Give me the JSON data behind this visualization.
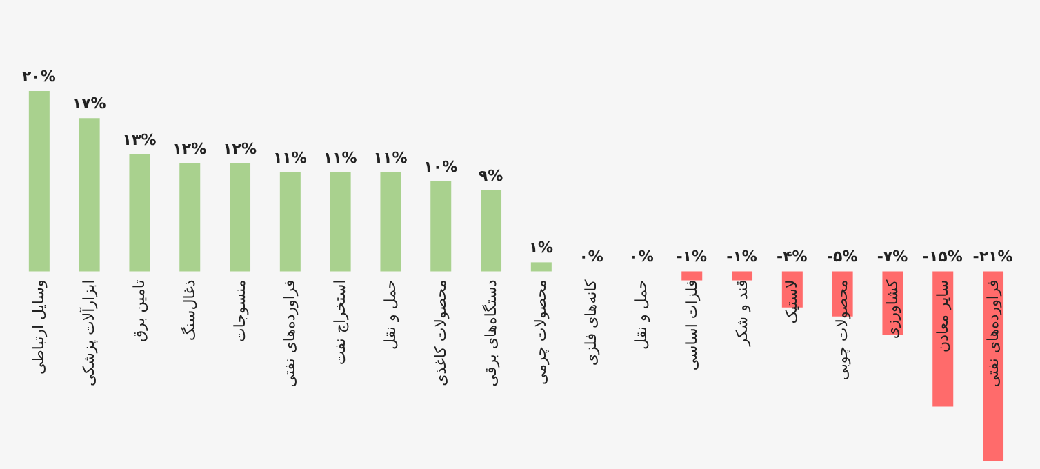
{
  "chart_data": {
    "type": "bar",
    "categories": [
      "وسایل ارتباطی",
      "ابزارآلات پزشکی",
      "تامین برق",
      "ذغال‌سنگ",
      "منسوجات",
      "فراورده‌های نفتی",
      "استخراج نفت",
      "حمل و نقل",
      "محصولات کاغذی",
      "دستگاه‌های برقی",
      "محصولات چرمی",
      "کانه‌های فلزی",
      "حمل و نقل",
      "فلزات اساسی",
      "قند و شکر",
      "لاستیک",
      "محصولات چوبی",
      "کشاورزی",
      "سایر معادن",
      "فراورده‌های نفتی"
    ],
    "values": [
      20,
      17,
      13,
      12,
      12,
      11,
      11,
      11,
      10,
      9,
      1,
      0,
      0,
      -1,
      -1,
      -4,
      -5,
      -7,
      -15,
      -21
    ],
    "colors": [
      "#a9d18e",
      "#a9d18e",
      "#a9d18e",
      "#a9d18e",
      "#a9d18e",
      "#a9d18e",
      "#a9d18e",
      "#a9d18e",
      "#a9d18e",
      "#a9d18e",
      "#a9d18e",
      "#a9d18e",
      "#a9d18e",
      "#ff6b6b",
      "#ff6b6b",
      "#ff6b6b",
      "#ff6b6b",
      "#ff6b6b",
      "#ff6b6b",
      "#ff6b6b"
    ],
    "value_labels": [
      "۲۰%",
      "۱۷%",
      "۱۳%",
      "۱۲%",
      "۱۲%",
      "۱۱%",
      "۱۱%",
      "۱۱%",
      "۱۰%",
      "۹%",
      "۱%",
      "۰%",
      "۰%",
      "-۱%",
      "-۱%",
      "-۴%",
      "-۵%",
      "-۷%",
      "-۱۵%",
      "-۲۱%"
    ]
  }
}
